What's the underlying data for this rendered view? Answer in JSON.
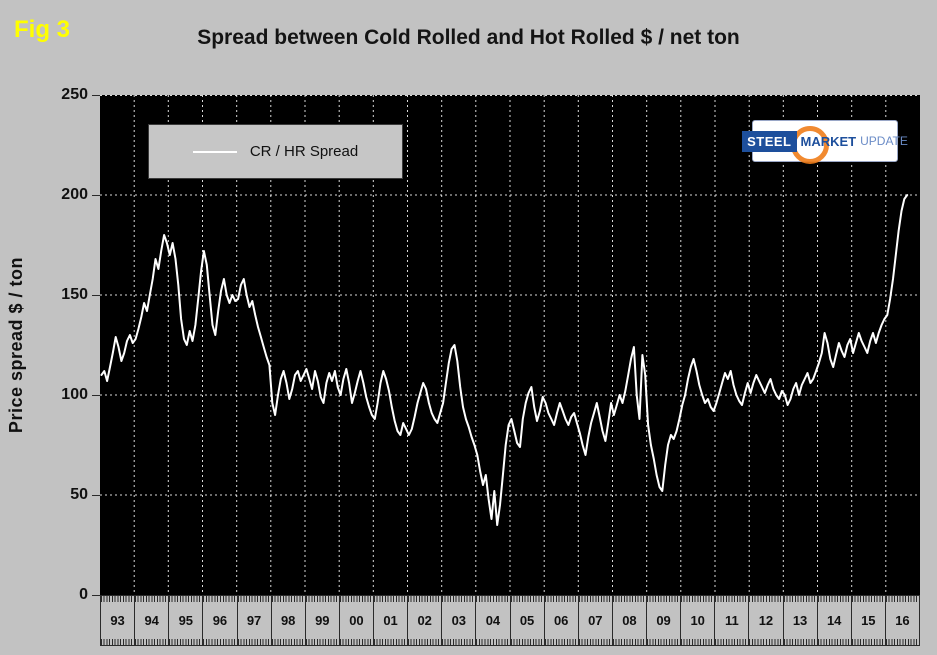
{
  "header": {
    "fig_label": "Fig 3",
    "title": "Spread between Cold Rolled and Hot Rolled $ / net ton"
  },
  "y_axis": {
    "label": "Price spread $ / ton",
    "ticks": [
      0,
      50,
      100,
      150,
      200,
      250
    ],
    "min": 0,
    "max": 250
  },
  "x_axis": {
    "years": [
      "93",
      "94",
      "95",
      "96",
      "97",
      "98",
      "99",
      "00",
      "01",
      "02",
      "03",
      "04",
      "05",
      "06",
      "07",
      "08",
      "09",
      "10",
      "11",
      "12",
      "13",
      "14",
      "15",
      "16"
    ]
  },
  "legend": {
    "label": "CR / HR Spread"
  },
  "logo": {
    "steel": "STEEL",
    "market": "MARKET",
    "update": "UPDATE"
  },
  "colors": {
    "background": "#c2c2c2",
    "plot_background": "#000000",
    "line": "#ffffff",
    "gridline": "#ffffff",
    "fig_label_color": "#ffff00",
    "logo_blue": "#1d4f9c",
    "logo_orange": "#f07d1a"
  },
  "chart_data": {
    "type": "line",
    "title": "Spread between Cold Rolled and Hot Rolled $ / net ton",
    "ylabel": "Price spread $ / ton",
    "ylim": [
      0,
      250
    ],
    "x_start": "1993-01",
    "frequency": "monthly",
    "x_year_labels": [
      "93",
      "94",
      "95",
      "96",
      "97",
      "98",
      "99",
      "00",
      "01",
      "02",
      "03",
      "04",
      "05",
      "06",
      "07",
      "08",
      "09",
      "10",
      "11",
      "12",
      "13",
      "14",
      "15",
      "16"
    ],
    "grid": "dashed white on black, horizontal every 50, vertical every year",
    "legend_position": "top-left-inside",
    "series": [
      {
        "name": "CR / HR Spread",
        "color": "#ffffff",
        "values": [
          110,
          112,
          107,
          114,
          121,
          129,
          124,
          117,
          121,
          127,
          130,
          126,
          128,
          133,
          139,
          146,
          142,
          150,
          158,
          168,
          163,
          172,
          180,
          176,
          170,
          176,
          168,
          155,
          138,
          128,
          125,
          132,
          127,
          135,
          148,
          162,
          172,
          165,
          150,
          135,
          130,
          142,
          152,
          158,
          150,
          146,
          150,
          147,
          148,
          155,
          158,
          150,
          144,
          147,
          140,
          134,
          129,
          124,
          119,
          115,
          96,
          90,
          100,
          108,
          112,
          106,
          98,
          103,
          110,
          112,
          107,
          110,
          113,
          108,
          103,
          112,
          107,
          99,
          96,
          106,
          111,
          107,
          112,
          104,
          100,
          108,
          113,
          106,
          96,
          101,
          107,
          112,
          106,
          99,
          94,
          90,
          88,
          96,
          106,
          112,
          108,
          102,
          94,
          87,
          82,
          80,
          86,
          83,
          80,
          83,
          89,
          96,
          101,
          106,
          103,
          96,
          91,
          88,
          86,
          91,
          96,
          106,
          116,
          123,
          125,
          117,
          104,
          94,
          88,
          84,
          79,
          75,
          70,
          62,
          55,
          60,
          48,
          38,
          52,
          35,
          45,
          60,
          75,
          85,
          88,
          82,
          76,
          74,
          88,
          96,
          101,
          104,
          94,
          87,
          92,
          99,
          96,
          91,
          88,
          85,
          91,
          96,
          92,
          88,
          85,
          89,
          91,
          86,
          81,
          75,
          70,
          79,
          86,
          91,
          96,
          89,
          82,
          77,
          86,
          96,
          90,
          95,
          100,
          96,
          102,
          110,
          118,
          124,
          100,
          88,
          120,
          110,
          85,
          75,
          68,
          60,
          54,
          52,
          65,
          75,
          80,
          78,
          82,
          88,
          95,
          100,
          108,
          114,
          118,
          112,
          105,
          100,
          96,
          98,
          94,
          92,
          96,
          101,
          106,
          111,
          108,
          112,
          105,
          100,
          97,
          95,
          101,
          106,
          101,
          106,
          110,
          107,
          104,
          101,
          105,
          108,
          103,
          100,
          98,
          102,
          100,
          95,
          98,
          103,
          106,
          100,
          105,
          108,
          111,
          106,
          108,
          112,
          116,
          121,
          131,
          126,
          118,
          114,
          120,
          126,
          122,
          119,
          125,
          128,
          121,
          126,
          131,
          127,
          124,
          121,
          127,
          131,
          126,
          131,
          135,
          138,
          140,
          148,
          158,
          170,
          182,
          192,
          198,
          200
        ]
      }
    ]
  }
}
